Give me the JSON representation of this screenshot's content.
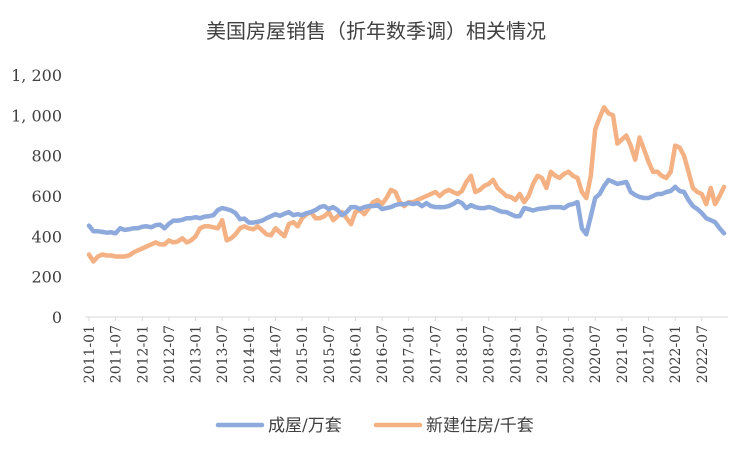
{
  "chart_data": {
    "type": "line",
    "title": "美国房屋销售（折年数季调）相关情况",
    "xlabel": "",
    "ylabel": "",
    "ylim": [
      0,
      1200
    ],
    "yticks": [
      0,
      200,
      400,
      600,
      800,
      1000,
      1200
    ],
    "ytick_labels": [
      "0",
      "200",
      "400",
      "600",
      "800",
      "1, 000",
      "1, 200"
    ],
    "x_start": "2011-01",
    "x_end": "2022-12",
    "xtick_labels": [
      "2011-01",
      "2011-07",
      "2012-01",
      "2012-07",
      "2013-01",
      "2013-07",
      "2014-01",
      "2014-07",
      "2015-01",
      "2015-07",
      "2016-01",
      "2016-07",
      "2017-01",
      "2017-07",
      "2018-01",
      "2018-07",
      "2019-01",
      "2019-07",
      "2020-01",
      "2020-07",
      "2021-01",
      "2021-07",
      "2022-01",
      "2022-07"
    ],
    "grid": false,
    "legend_position": "bottom",
    "colors": {
      "existing": "#8eaadc",
      "new": "#f4b183",
      "axis": "#d9d9d9",
      "text": "#404040"
    },
    "series": [
      {
        "name": "成屋/万套",
        "color": "#8eaadc",
        "values": [
          453,
          425,
          425,
          422,
          418,
          420,
          415,
          440,
          432,
          435,
          440,
          440,
          448,
          450,
          445,
          455,
          458,
          440,
          462,
          478,
          478,
          482,
          490,
          490,
          495,
          490,
          498,
          500,
          505,
          530,
          540,
          535,
          528,
          515,
          485,
          488,
          468,
          468,
          472,
          478,
          490,
          500,
          510,
          502,
          512,
          520,
          505,
          510,
          505,
          515,
          520,
          530,
          545,
          550,
          535,
          545,
          530,
          505,
          520,
          545,
          545,
          535,
          545,
          550,
          550,
          555,
          535,
          540,
          545,
          555,
          560,
          560,
          565,
          560,
          565,
          550,
          565,
          550,
          545,
          545,
          545,
          550,
          560,
          575,
          565,
          540,
          555,
          545,
          540,
          540,
          545,
          540,
          530,
          522,
          520,
          510,
          500,
          500,
          540,
          535,
          528,
          535,
          538,
          540,
          545,
          545,
          545,
          540,
          555,
          560,
          570,
          440,
          410,
          500,
          590,
          610,
          650,
          680,
          670,
          660,
          665,
          670,
          620,
          605,
          595,
          590,
          590,
          600,
          610,
          610,
          620,
          625,
          645,
          625,
          620,
          580,
          550,
          535,
          515,
          490,
          480,
          470,
          440,
          415
        ]
      },
      {
        "name": "新建住房/千套",
        "color": "#f4b183",
        "values": [
          310,
          275,
          300,
          310,
          305,
          305,
          300,
          300,
          300,
          305,
          320,
          330,
          340,
          350,
          360,
          370,
          360,
          360,
          380,
          370,
          375,
          390,
          370,
          380,
          400,
          440,
          450,
          450,
          445,
          440,
          480,
          380,
          390,
          410,
          440,
          450,
          440,
          435,
          450,
          430,
          410,
          405,
          440,
          420,
          400,
          460,
          470,
          450,
          490,
          510,
          520,
          490,
          490,
          500,
          520,
          480,
          500,
          520,
          490,
          460,
          520,
          530,
          510,
          540,
          570,
          580,
          560,
          590,
          630,
          620,
          570,
          550,
          570,
          570,
          580,
          590,
          600,
          610,
          620,
          600,
          620,
          630,
          620,
          610,
          625,
          670,
          700,
          620,
          630,
          650,
          660,
          680,
          640,
          620,
          600,
          595,
          580,
          610,
          570,
          600,
          660,
          700,
          690,
          640,
          720,
          700,
          690,
          710,
          720,
          700,
          690,
          620,
          590,
          700,
          930,
          990,
          1040,
          1010,
          1000,
          860,
          880,
          900,
          850,
          780,
          890,
          830,
          770,
          720,
          720,
          700,
          690,
          720,
          850,
          840,
          800,
          720,
          640,
          620,
          610,
          560,
          640,
          560,
          600,
          645
        ]
      }
    ]
  }
}
